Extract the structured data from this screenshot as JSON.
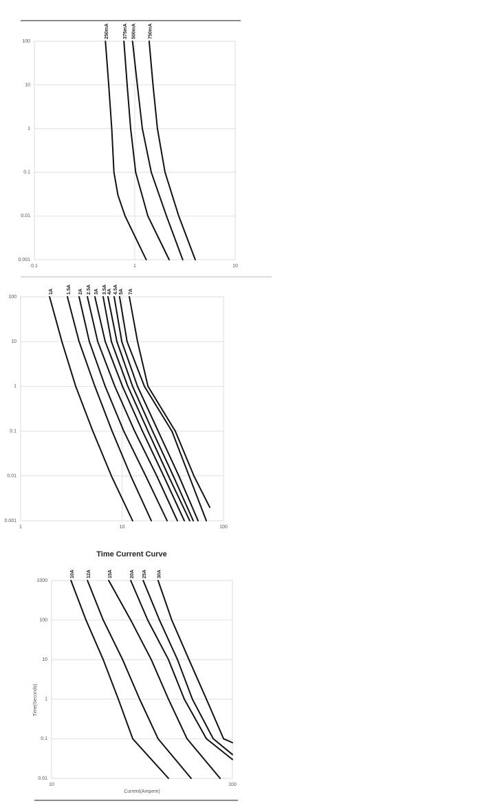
{
  "chart_data": [
    {
      "type": "line",
      "log_scale": true,
      "grid": true,
      "xlim": [
        0.1,
        10
      ],
      "xticks": [
        0.1,
        1,
        10
      ],
      "ylim": [
        0.001,
        100
      ],
      "yticks": [
        100,
        10,
        1,
        0.1,
        0.01,
        0.001
      ],
      "series": [
        {
          "name": "250mA",
          "color": "#111111",
          "x": [
            0.51,
            0.55,
            0.59,
            0.62,
            0.68,
            0.8,
            1.3
          ],
          "values": [
            100,
            10,
            1,
            0.1,
            0.03,
            0.01,
            0.001
          ]
        },
        {
          "name": "375mA",
          "color": "#111111",
          "x": [
            0.78,
            0.84,
            0.91,
            1.02,
            1.35,
            2.2
          ],
          "values": [
            100,
            10,
            1,
            0.1,
            0.01,
            0.001
          ]
        },
        {
          "name": "500mA",
          "color": "#111111",
          "x": [
            0.95,
            1.06,
            1.19,
            1.46,
            2.07,
            3.0
          ],
          "values": [
            100,
            10,
            1,
            0.1,
            0.01,
            0.001
          ]
        },
        {
          "name": "750mA",
          "color": "#111111",
          "x": [
            1.39,
            1.52,
            1.68,
            2.0,
            2.74,
            4.0
          ],
          "values": [
            100,
            10,
            1,
            0.1,
            0.01,
            0.001
          ]
        }
      ]
    },
    {
      "type": "line",
      "log_scale": true,
      "grid": true,
      "xlim": [
        1,
        100
      ],
      "xticks": [
        1,
        10,
        100
      ],
      "ylim": [
        0.001,
        100
      ],
      "yticks": [
        100,
        10,
        1,
        0.1,
        0.01,
        0.001
      ],
      "series": [
        {
          "name": "1A",
          "color": "#111111",
          "x": [
            1.93,
            2.55,
            3.49,
            5.15,
            7.85,
            12.7
          ],
          "values": [
            100,
            10,
            1,
            0.1,
            0.01,
            0.001
          ]
        },
        {
          "name": "1.5A",
          "color": "#111111",
          "x": [
            2.89,
            3.77,
            5.4,
            7.98,
            12.2,
            19.4
          ],
          "values": [
            100,
            10,
            1,
            0.1,
            0.01,
            0.001
          ]
        },
        {
          "name": "2A",
          "color": "#111111",
          "x": [
            3.77,
            4.76,
            6.82,
            10.4,
            17.1,
            27.8
          ],
          "values": [
            100,
            10,
            1,
            0.1,
            0.01,
            0.001
          ]
        },
        {
          "name": "2.5A",
          "color": "#111111",
          "x": [
            4.55,
            5.75,
            8.49,
            13.3,
            22.0,
            35.1
          ],
          "values": [
            100,
            10,
            1,
            0.1,
            0.01,
            0.001
          ]
        },
        {
          "name": "3A",
          "color": "#111111",
          "x": [
            5.4,
            6.82,
            10.1,
            15.9,
            25.7,
            41.1
          ],
          "values": [
            100,
            10,
            1,
            0.1,
            0.01,
            0.001
          ]
        },
        {
          "name": "3.5A",
          "color": "#111111",
          "x": [
            6.51,
            7.85,
            11.4,
            18.0,
            28.7,
            46.5
          ],
          "values": [
            100,
            10,
            1,
            0.1,
            0.01,
            0.001
          ]
        },
        {
          "name": "4A",
          "color": "#111111",
          "x": [
            7.26,
            8.89,
            12.7,
            20.0,
            32.0,
            50.3
          ],
          "values": [
            100,
            10,
            1,
            0.1,
            0.01,
            0.001
          ]
        },
        {
          "name": "4.5A",
          "color": "#111111",
          "x": [
            8.36,
            9.93,
            14.2,
            22.7,
            36.3,
            56.1
          ],
          "values": [
            100,
            10,
            1,
            0.1,
            0.01,
            0.001
          ]
        },
        {
          "name": "5A",
          "color": "#111111",
          "x": [
            9.46,
            11.2,
            16.6,
            31.0,
            45.8,
            67.7
          ],
          "values": [
            100,
            10,
            1,
            0.1,
            0.01,
            0.001
          ]
        },
        {
          "name": "7A",
          "color": "#111111",
          "x": [
            11.8,
            14.2,
            18.0,
            33.5,
            51.1,
            73.2
          ],
          "values": [
            100,
            10,
            1,
            0.1,
            0.01,
            0.002
          ]
        }
      ]
    },
    {
      "type": "line",
      "log_scale": true,
      "grid": true,
      "title": "Time Current Curve",
      "x_label": "Current(Ampere)",
      "y_label": "Time(Seconds)",
      "xlim": [
        10,
        100
      ],
      "xticks": [
        10,
        100
      ],
      "ylim": [
        0.01,
        1000
      ],
      "yticks": [
        1000,
        100,
        10,
        1,
        0.1,
        0.01
      ],
      "series": [
        {
          "name": "10A",
          "color": "#111111",
          "x": [
            12.8,
            15.5,
            19.3,
            23.4,
            28.1,
            44.3
          ],
          "values": [
            1000,
            100,
            10,
            1,
            0.1,
            0.01
          ]
        },
        {
          "name": "12A",
          "color": "#111111",
          "x": [
            15.8,
            19.3,
            24.7,
            30.7,
            38.8,
            59.1
          ],
          "values": [
            1000,
            100,
            10,
            1,
            0.1,
            0.01
          ]
        },
        {
          "name": "15A",
          "color": "#111111",
          "x": [
            20.7,
            27.4,
            35.6,
            44.3,
            56.1,
            85.5
          ],
          "values": [
            1000,
            100,
            10,
            1,
            0.1,
            0.01
          ]
        },
        {
          "name": "20A",
          "color": "#111111",
          "x": [
            27.4,
            34.0,
            44.3,
            54.2,
            71.8,
            100
          ],
          "values": [
            1000,
            100,
            10,
            1,
            0.1,
            0.03
          ]
        },
        {
          "name": "25A",
          "color": "#111111",
          "x": [
            32.1,
            39.5,
            49.7,
            60.1,
            78.3,
            100
          ],
          "values": [
            1000,
            100,
            10,
            1,
            0.1,
            0.04
          ]
        },
        {
          "name": "30A",
          "color": "#111111",
          "x": [
            38.8,
            46.2,
            57.5,
            71.8,
            89.3,
            100
          ],
          "values": [
            1000,
            100,
            10,
            1,
            0.1,
            0.08
          ]
        }
      ]
    }
  ]
}
